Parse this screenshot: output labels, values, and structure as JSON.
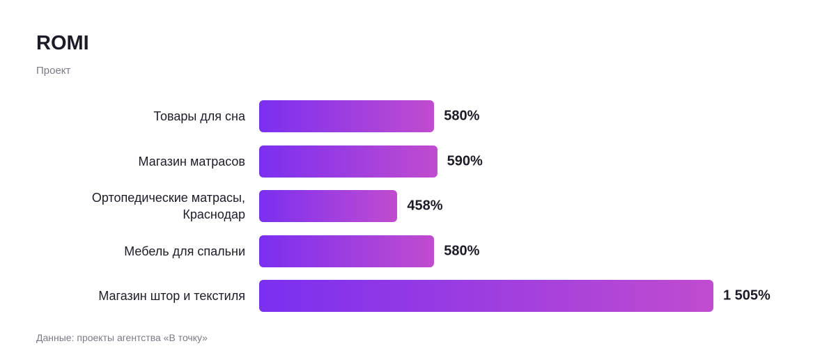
{
  "chart_data": {
    "type": "bar",
    "orientation": "horizontal",
    "title": "ROMI",
    "subtitle": "Проект",
    "categories": [
      "Товары для сна",
      "Магазин матрасов",
      "Ортопедические матрасы, Краснодар",
      "Мебель для спальни",
      "Магазин штор и текстиля"
    ],
    "values": [
      580,
      590,
      458,
      580,
      1505
    ],
    "value_labels": [
      "580%",
      "590%",
      "458%",
      "580%",
      "1 505%"
    ],
    "gradient": [
      "#7b2ff0",
      "#c04ccf"
    ],
    "footnote": "Данные: проекты агентства «В точку»"
  }
}
